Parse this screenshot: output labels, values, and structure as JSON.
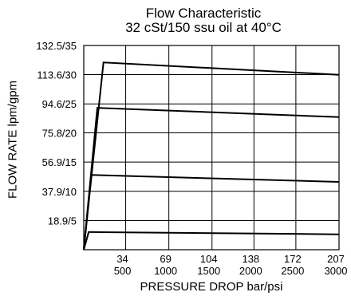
{
  "chart_data": {
    "type": "line",
    "title": "Flow Characteristic",
    "subtitle": "32 cSt/150 ssu oil at 40°C",
    "xlabel": "PRESSURE DROP bar/psi",
    "ylabel": "FLOW RATE lpm/gpm",
    "xlim": [
      0,
      207
    ],
    "ylim": [
      0,
      132.5
    ],
    "x_ticks": [
      {
        "value": 34,
        "bar": "34",
        "psi": "500"
      },
      {
        "value": 69,
        "bar": "69",
        "psi": "1000"
      },
      {
        "value": 104,
        "bar": "104",
        "psi": "1500"
      },
      {
        "value": 138,
        "bar": "138",
        "psi": "2000"
      },
      {
        "value": 172,
        "bar": "172",
        "psi": "2500"
      },
      {
        "value": 207,
        "bar": "207",
        "psi": "3000"
      }
    ],
    "y_ticks": [
      {
        "value": 18.9,
        "label": "18.9/5"
      },
      {
        "value": 37.9,
        "label": "37.9/10"
      },
      {
        "value": 56.9,
        "label": "56.9/15"
      },
      {
        "value": 75.8,
        "label": "75.8/20"
      },
      {
        "value": 94.6,
        "label": "94.6/25"
      },
      {
        "value": 113.6,
        "label": "113.6/30"
      },
      {
        "value": 132.5,
        "label": "132.5/35"
      }
    ],
    "grid": true,
    "series": [
      {
        "x": [
          0,
          4,
          207
        ],
        "y": [
          0,
          11.5,
          10.0
        ]
      },
      {
        "x": [
          0,
          6,
          207
        ],
        "y": [
          0,
          48.5,
          44.0
        ]
      },
      {
        "x": [
          0,
          11,
          207
        ],
        "y": [
          0,
          92.0,
          86.0
        ]
      },
      {
        "x": [
          0,
          16,
          207
        ],
        "y": [
          0,
          121.5,
          113.5
        ]
      }
    ],
    "line_color": "#000000",
    "grid_color": "#000000"
  }
}
